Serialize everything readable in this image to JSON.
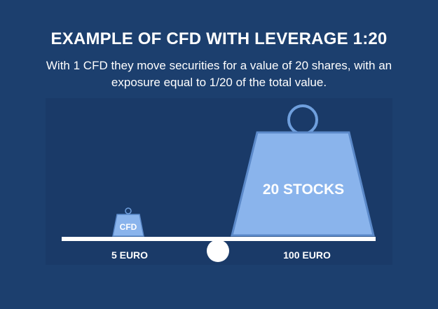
{
  "header": {
    "title": "EXAMPLE OF CFD WITH LEVERAGE 1:20",
    "subtitle": "With 1 CFD they move securities for a value of 20 shares, with an exposure equal to 1/20 of the total value."
  },
  "scale": {
    "left_weight_label": "CFD",
    "left_value_label": "5 EURO",
    "right_weight_label": "20 STOCKS",
    "right_value_label": "100 EURO"
  },
  "colors": {
    "background": "#1c3f6e",
    "panel": "#1a3a68",
    "weight_fill": "#8ab4ec",
    "weight_stroke": "#5b89c9",
    "ring": "#6f9fdd",
    "beam": "#ffffff"
  }
}
